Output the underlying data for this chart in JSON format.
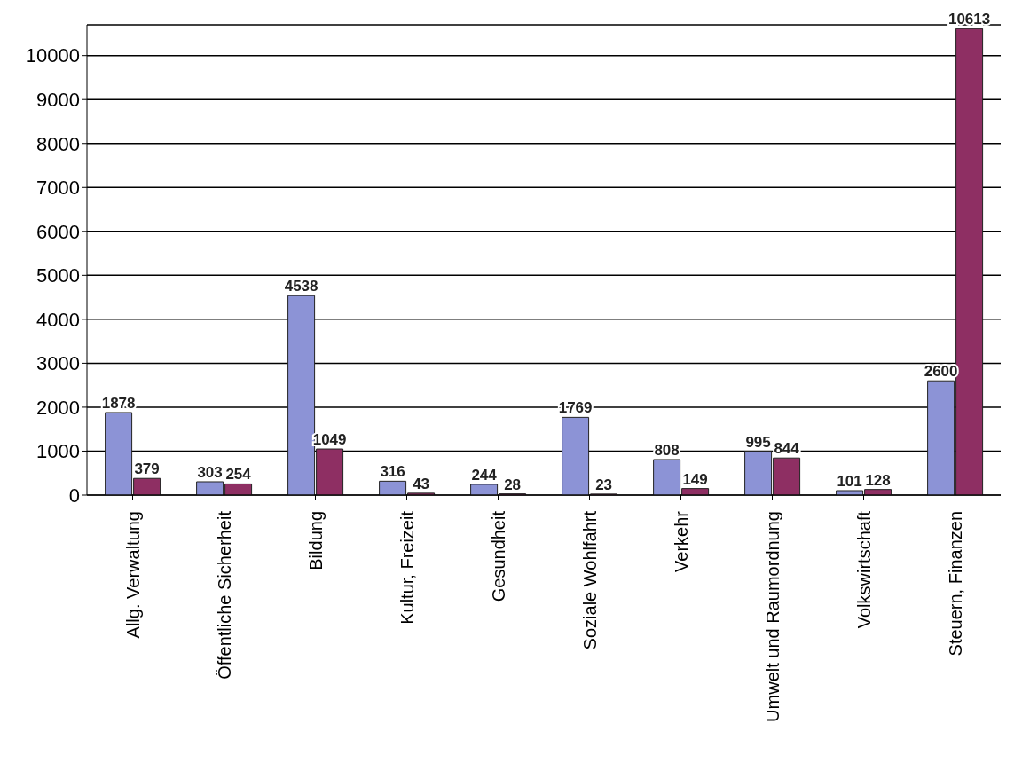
{
  "chart_data": {
    "type": "bar",
    "categories": [
      "Allg. Verwaltung",
      "Öffentliche Sicherheit",
      "Bildung",
      "Kultur, Freizeit",
      "Gesundheit",
      "Soziale Wohlfahrt",
      "Verkehr",
      "Umwelt und Raumordnung",
      "Volkswirtschaft",
      "Steuern, Finanzen"
    ],
    "series": [
      {
        "color": "#8c93d6",
        "values": [
          1878,
          303,
          4538,
          316,
          244,
          1769,
          808,
          995,
          101,
          2600
        ]
      },
      {
        "color": "#8e2f63",
        "values": [
          379,
          254,
          1049,
          43,
          28,
          23,
          149,
          844,
          128,
          10613
        ]
      }
    ],
    "ylim": [
      0,
      10700
    ],
    "yticks": [
      0,
      1000,
      2000,
      3000,
      4000,
      5000,
      6000,
      7000,
      8000,
      9000,
      10000
    ],
    "grid": "y",
    "data_labels": true
  }
}
